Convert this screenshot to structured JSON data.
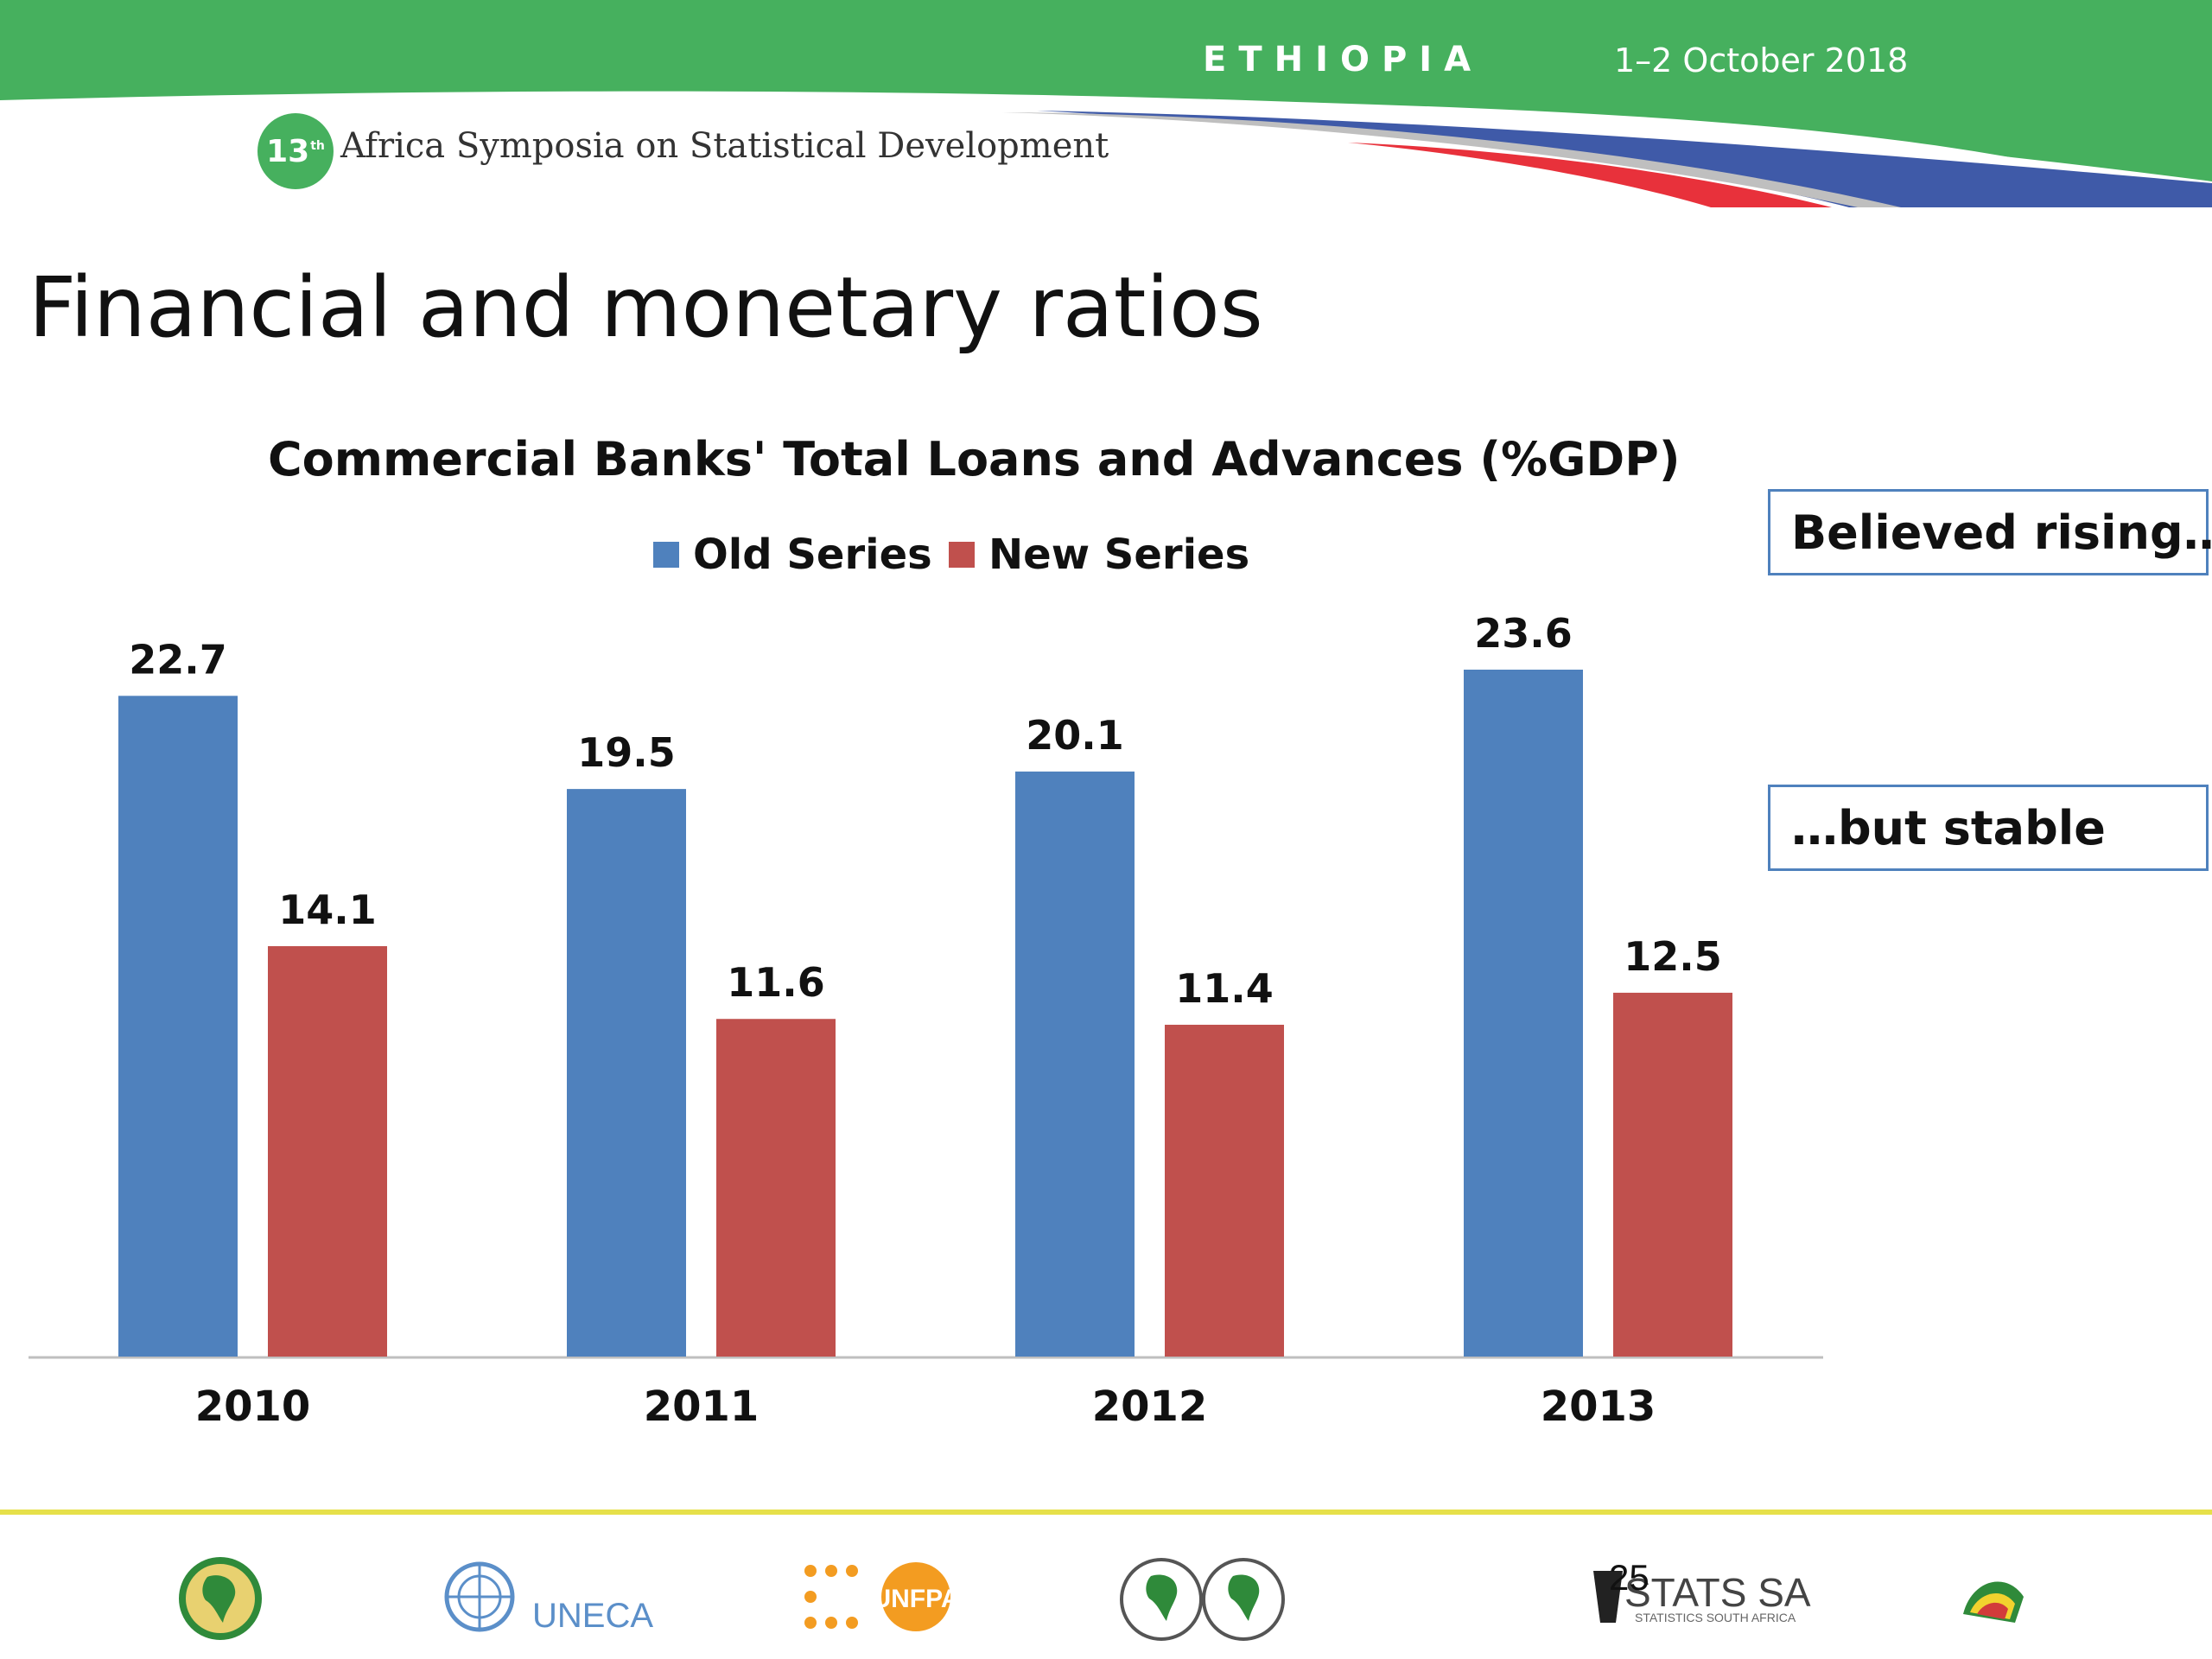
{
  "header": {
    "country": "ETHIOPIA",
    "dates": "1–2 October 2018",
    "edition": "13",
    "edition_suffix": "th",
    "event_name": "Africa Symposia on Statistical Development"
  },
  "slide": {
    "title": "Financial and monetary ratios",
    "page_number": "25"
  },
  "callouts": [
    "Believed rising…",
    "…but stable"
  ],
  "footer": {
    "uneca_label": "UNECA",
    "unfpa_label": "UNFPA",
    "statssa_label": "STATS SA",
    "statssa_sub": "STATISTICS SOUTH AFRICA"
  },
  "colors": {
    "header_green": "#46b05e",
    "old_series": "#4f81bd",
    "new_series": "#c0504d",
    "footer_line": "#e6e04a"
  },
  "chart_data": {
    "type": "bar",
    "title": "Commercial Banks' Total  Loans and Advances (%GDP)",
    "categories": [
      "2010",
      "2011",
      "2012",
      "2013"
    ],
    "series": [
      {
        "name": "Old Series",
        "color": "#4f81bd",
        "values": [
          22.7,
          19.5,
          20.1,
          23.6
        ]
      },
      {
        "name": "New Series",
        "color": "#c0504d",
        "values": [
          14.1,
          11.6,
          11.4,
          12.5
        ]
      }
    ],
    "ylim": [
      0,
      23.6
    ],
    "legend_position": "top",
    "grid": false,
    "data_labels": true
  }
}
